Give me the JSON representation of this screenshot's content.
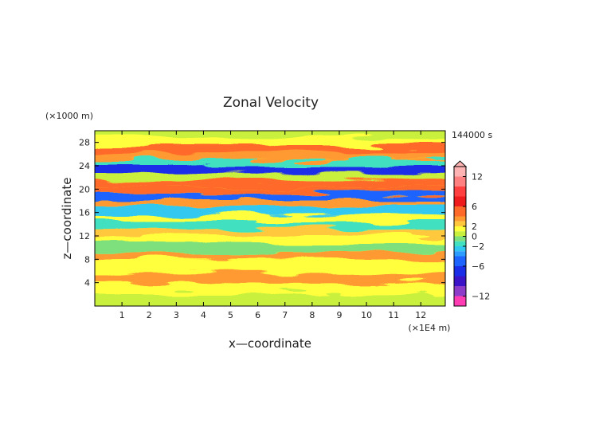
{
  "chart_data": {
    "type": "heatmap",
    "title": "Zonal Velocity",
    "xlabel": "x—coordinate",
    "ylabel": "z—coordinate",
    "x_unit": "(×1E4 m)",
    "y_unit": "(×1000 m)",
    "time_label": "144000 s",
    "xlim": [
      0,
      12.9
    ],
    "ylim": [
      0,
      30
    ],
    "x_ticks": [
      "1",
      "2",
      "3",
      "4",
      "5",
      "6",
      "7",
      "8",
      "9",
      "10",
      "11",
      "12"
    ],
    "y_ticks": [
      "4",
      "8",
      "12",
      "16",
      "20",
      "24",
      "28"
    ],
    "colorbar": {
      "range": [
        -14,
        14
      ],
      "ticks": [
        "12",
        "6",
        "2",
        "0",
        "−2",
        "−6",
        "−12"
      ],
      "levels": [
        {
          "from": 12,
          "to": 14,
          "color": "#ffb3b3"
        },
        {
          "from": 10,
          "to": 12,
          "color": "#ff8080"
        },
        {
          "from": 8,
          "to": 10,
          "color": "#ff4040"
        },
        {
          "from": 6,
          "to": 8,
          "color": "#ee1c1c"
        },
        {
          "from": 4,
          "to": 6,
          "color": "#ff6a2a"
        },
        {
          "from": 3,
          "to": 4,
          "color": "#ff9a30"
        },
        {
          "from": 2,
          "to": 3,
          "color": "#ffc83c"
        },
        {
          "from": 1,
          "to": 2,
          "color": "#ffff3c"
        },
        {
          "from": 0,
          "to": 1,
          "color": "#c8f03c"
        },
        {
          "from": -1,
          "to": 0,
          "color": "#7de07d"
        },
        {
          "from": -2,
          "to": -1,
          "color": "#40e0c0"
        },
        {
          "from": -3,
          "to": -2,
          "color": "#30c8f0"
        },
        {
          "from": -4,
          "to": -3,
          "color": "#2d9cff"
        },
        {
          "from": -6,
          "to": -4,
          "color": "#1e64ff"
        },
        {
          "from": -8,
          "to": -6,
          "color": "#1a2ee8"
        },
        {
          "from": -10,
          "to": -8,
          "color": "#3c14c8"
        },
        {
          "from": -12,
          "to": -10,
          "color": "#8c3cc8"
        },
        {
          "from": -14,
          "to": -12,
          "color": "#ff3cb4"
        }
      ]
    },
    "bands": [
      {
        "z": 1.5,
        "u": 0.6
      },
      {
        "z": 3.0,
        "u": 1.4
      },
      {
        "z": 4.8,
        "u": 3.4
      },
      {
        "z": 6.2,
        "u": 1.2
      },
      {
        "z": 7.6,
        "u": 1.8
      },
      {
        "z": 8.6,
        "u": 3.2
      },
      {
        "z": 10.0,
        "u": -0.8
      },
      {
        "z": 11.4,
        "u": 1.4
      },
      {
        "z": 12.6,
        "u": 2.0
      },
      {
        "z": 13.8,
        "u": -1.6
      },
      {
        "z": 15.0,
        "u": 1.0
      },
      {
        "z": 16.4,
        "u": -2.6
      },
      {
        "z": 17.6,
        "u": 3.4
      },
      {
        "z": 18.8,
        "u": -4.4
      },
      {
        "z": 19.6,
        "u": 4.0
      },
      {
        "z": 21.0,
        "u": 5.2
      },
      {
        "z": 22.2,
        "u": 0.6
      },
      {
        "z": 23.4,
        "u": -6.4
      },
      {
        "z": 24.6,
        "u": -1.6
      },
      {
        "z": 25.6,
        "u": 3.4
      },
      {
        "z": 26.8,
        "u": 4.6
      },
      {
        "z": 28.2,
        "u": 1.4
      },
      {
        "z": 29.4,
        "u": 0.8
      }
    ]
  }
}
